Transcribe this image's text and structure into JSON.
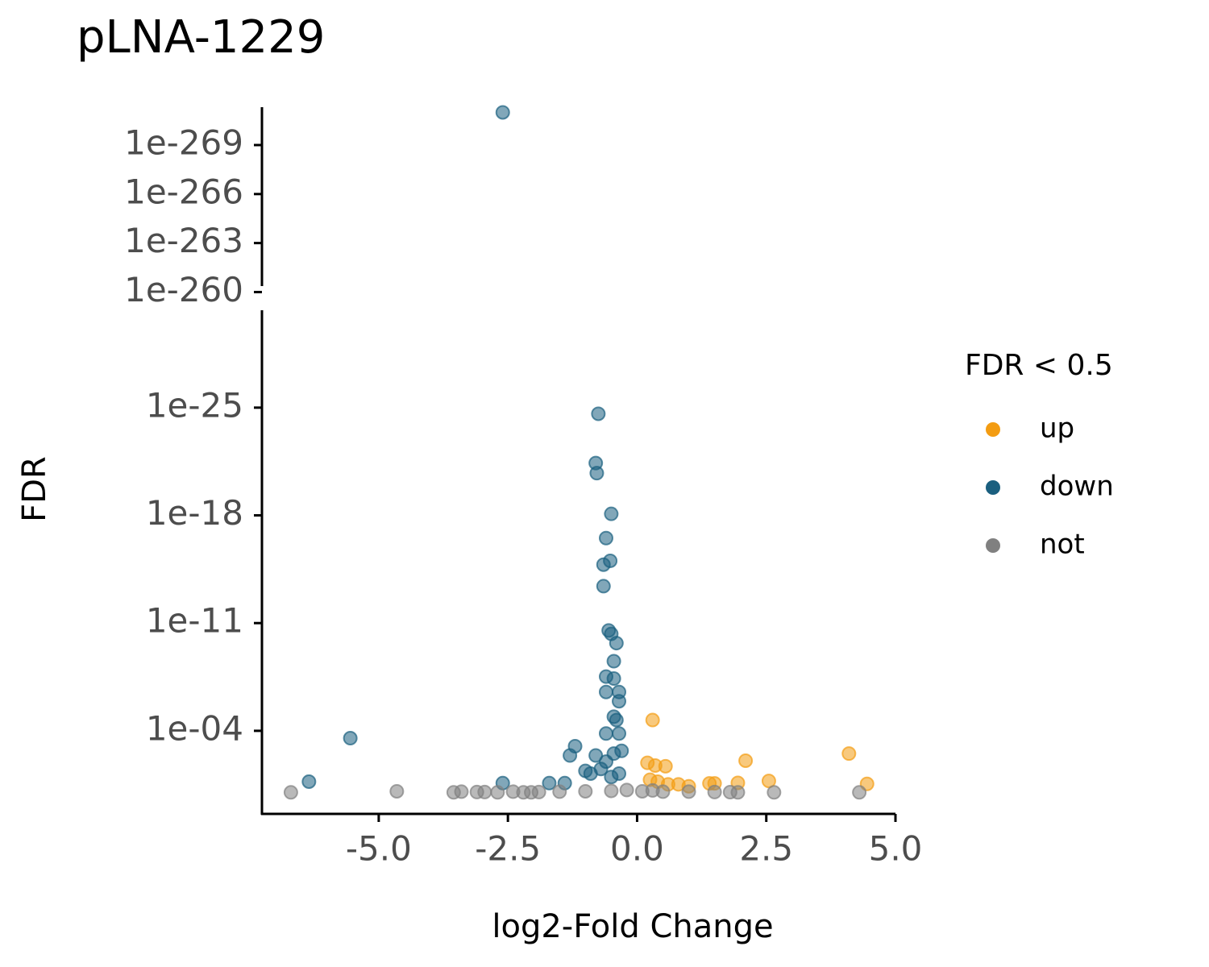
{
  "chart_data": {
    "type": "scatter",
    "title": "pLNA-1229",
    "x_label": "log2-Fold Change",
    "y_label": "FDR",
    "y_log": true,
    "y_reversed": true,
    "legend_title": "FDR < 0.5",
    "legend_position": "right",
    "xlim": [
      -7.26,
      5.0
    ],
    "xticks": [
      {
        "value": -5,
        "label": "-5.0"
      },
      {
        "value": -2.5,
        "label": "-2.5"
      },
      {
        "value": 0,
        "label": "0.0"
      },
      {
        "value": 2.5,
        "label": "2.5"
      },
      {
        "value": 5,
        "label": "5.0"
      }
    ],
    "panels": [
      {
        "ylim": [
          4.3e-261,
          4.8e-272
        ],
        "yticks": [
          {
            "value": 1e-260,
            "label": "1e-260"
          },
          {
            "value": 1e-263,
            "label": "1e-263"
          },
          {
            "value": 1e-266,
            "label": "1e-266"
          },
          {
            "value": 1e-269,
            "label": "1e-269"
          }
        ]
      },
      {
        "ylim": [
          25,
          4.7e-32
        ],
        "yticks": [
          {
            "value": 0.0001,
            "label": "1e-04"
          },
          {
            "value": 1e-11,
            "label": "1e-11"
          },
          {
            "value": 1e-18,
            "label": "1e-18"
          },
          {
            "value": 1e-25,
            "label": "1e-25"
          }
        ]
      }
    ],
    "series": [
      {
        "name": "up",
        "color": "#f39c12",
        "x": [
          0.3,
          2.1,
          4.1,
          0.35,
          0.55,
          0.2,
          2.55,
          4.45,
          1.95,
          1.4,
          1.5,
          0.8,
          0.4,
          0.25,
          1.0,
          0.6
        ],
        "values": [
          2e-05,
          0.0087,
          0.003,
          0.018,
          0.02,
          0.012,
          0.18,
          0.28,
          0.24,
          0.26,
          0.26,
          0.3,
          0.2,
          0.15,
          0.4,
          0.3
        ]
      },
      {
        "name": "down",
        "color": "#1a5f7f",
        "x": [
          -2.6,
          -0.75,
          -0.8,
          -0.78,
          -0.5,
          -0.6,
          -0.52,
          -0.65,
          -0.65,
          -0.55,
          -0.5,
          -0.4,
          -0.6,
          -0.45,
          -0.45,
          -0.6,
          -0.35,
          -0.35,
          -5.55,
          -6.35,
          -1.2,
          -1.3,
          -0.6,
          -0.45,
          -0.4,
          -0.35,
          -0.3,
          -0.45,
          -2.6,
          -0.9,
          -1.0,
          -1.4,
          -1.7,
          -0.5,
          -0.35,
          -0.6,
          -0.8,
          -0.7
        ],
        "values": [
          1e-271,
          2.5e-25,
          4e-22,
          1.8e-21,
          8e-19,
          3e-17,
          9e-16,
          1.6e-15,
          4e-14,
          3e-11,
          5e-11,
          2e-10,
          3e-08,
          4e-08,
          3e-09,
          3e-07,
          3e-07,
          1.2e-06,
          0.0003,
          0.2,
          0.001,
          0.004,
          0.00015,
          1.2e-05,
          2e-05,
          0.00015,
          0.002,
          0.003,
          0.25,
          0.06,
          0.04,
          0.25,
          0.25,
          0.1,
          0.06,
          0.01,
          0.004,
          0.03
        ]
      },
      {
        "name": "not",
        "color": "#808080",
        "x": [
          -6.7,
          -4.65,
          -3.55,
          -3.4,
          -3.1,
          -2.95,
          -2.7,
          -2.4,
          -2.2,
          -2.05,
          -1.9,
          -1.5,
          -1.0,
          -0.5,
          0.1,
          0.5,
          1.0,
          1.5,
          1.8,
          1.95,
          2.65,
          4.3,
          -0.2,
          0.3
        ],
        "values": [
          1,
          0.85,
          1,
          0.9,
          0.95,
          0.95,
          1,
          0.9,
          1,
          1,
          0.95,
          0.9,
          0.85,
          0.8,
          0.85,
          0.9,
          0.9,
          0.95,
          0.97,
          1,
          1,
          1,
          0.7,
          0.75
        ]
      }
    ]
  }
}
